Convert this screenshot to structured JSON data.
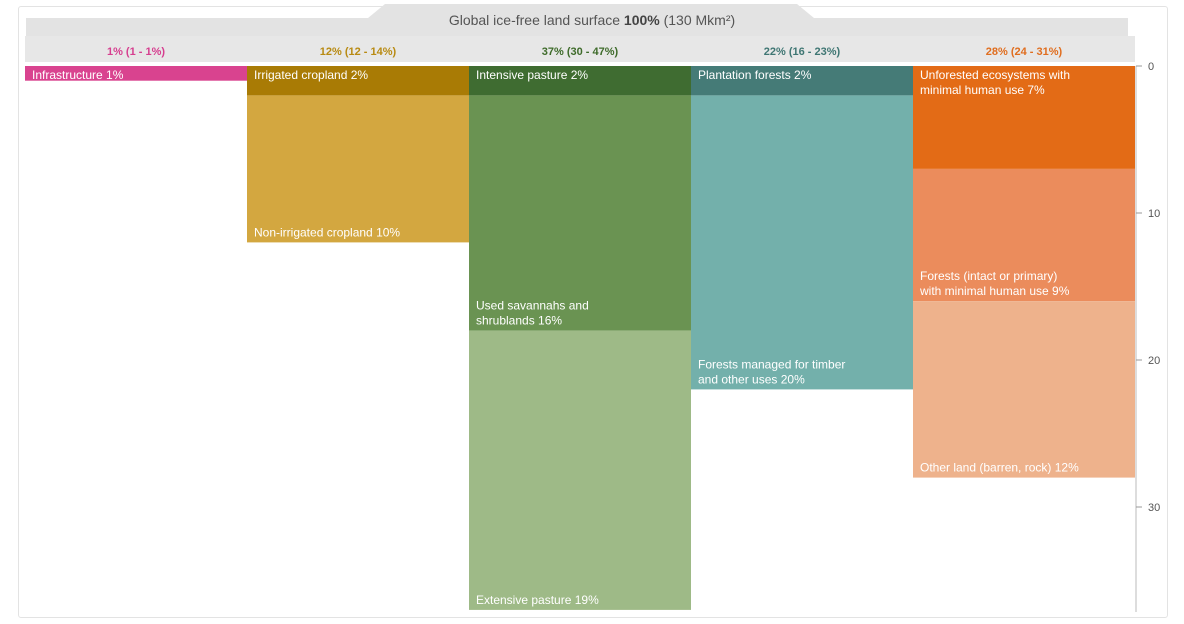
{
  "chart_data": {
    "type": "bar",
    "title": {
      "prefix": "Global ice-free land surface ",
      "emphasis": "100%",
      "suffix": " (130 Mkm²)"
    },
    "y_axis": {
      "ticks": [
        0,
        10,
        20,
        30
      ],
      "range": [
        0,
        38
      ],
      "orientation": "top-down",
      "position": "right"
    },
    "columns": [
      {
        "header": "1% (1 - 1%)",
        "header_color": "#d63e8f",
        "segments": [
          {
            "label": "Infrastructure 1%",
            "value": 1,
            "color": "#d9438f",
            "label_align": "top"
          }
        ]
      },
      {
        "header": "12% (12 - 14%)",
        "header_color": "#b88a12",
        "segments": [
          {
            "label": "Irrigated cropland 2%",
            "value": 2,
            "color": "#a97b05",
            "label_align": "top"
          },
          {
            "label": "Non-irrigated cropland 10%",
            "value": 10,
            "color": "#d3a740",
            "label_align": "bottom"
          }
        ]
      },
      {
        "header": "37% (30 - 47%)",
        "header_color": "#3e6b2a",
        "segments": [
          {
            "label": "Intensive pasture 2%",
            "value": 2,
            "color": "#3f6c31",
            "label_align": "top"
          },
          {
            "label": "Used savannahs and\nshrublands 16%",
            "value": 16,
            "color": "#6a9352",
            "label_align": "bottom"
          },
          {
            "label": "Extensive pasture 19%",
            "value": 19,
            "color": "#9eba87",
            "label_align": "bottom"
          }
        ]
      },
      {
        "header": "22% (16 - 23%)",
        "header_color": "#3f7673",
        "segments": [
          {
            "label": "Plantation forests 2%",
            "value": 2,
            "color": "#457b77",
            "label_align": "top"
          },
          {
            "label": "Forests managed for timber\nand other uses 20%",
            "value": 20,
            "color": "#73b0ab",
            "label_align": "bottom"
          }
        ]
      },
      {
        "header": "28% (24 - 31%)",
        "header_color": "#e06d1e",
        "segments": [
          {
            "label": "Unforested ecosystems with\nminimal human use  7%",
            "value": 7,
            "color": "#e36b16",
            "label_align": "top"
          },
          {
            "label": "Forests (intact or primary)\nwith minimal human use 9%",
            "value": 9,
            "color": "#eb8c5c",
            "label_align": "bottom"
          },
          {
            "label": "Other land (barren, rock) 12%",
            "value": 12,
            "color": "#eeb28c",
            "label_align": "bottom"
          }
        ]
      }
    ]
  }
}
